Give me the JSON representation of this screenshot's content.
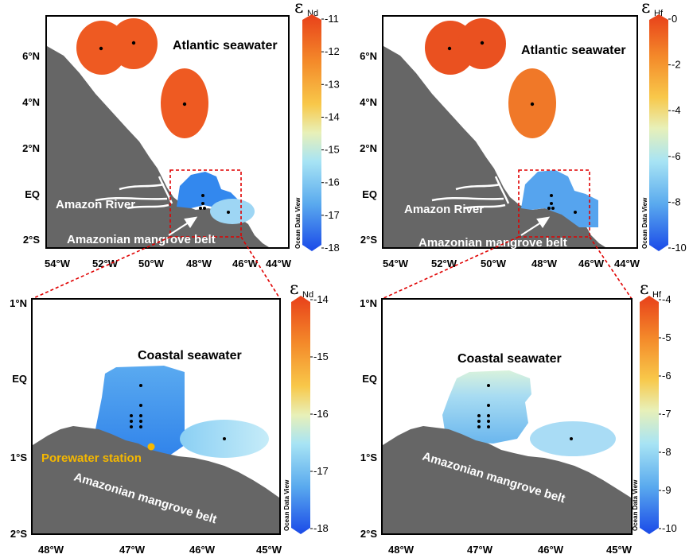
{
  "panels": [
    {
      "id": "nd_regional",
      "lon_ticks": [
        "54°W",
        "52°W",
        "50°W",
        "48°W",
        "46°W",
        "44°W"
      ],
      "lat_ticks": [
        "6°N",
        "4°N",
        "2°N",
        "EQ",
        "2°S"
      ],
      "labels": [
        "Atlantic seawater",
        "Amazon River",
        "Amazonian mangrove belt"
      ],
      "colorbar": {
        "symbol": "ε",
        "subscript": "Nd",
        "min": -18,
        "max": -11,
        "ticks": [
          "-11",
          "-12",
          "-13",
          "-14",
          "-15",
          "-16",
          "-17",
          "-18"
        ],
        "credit": "Ocean Data View"
      },
      "stations": [
        {
          "name": "station-1",
          "value": -11.5
        },
        {
          "name": "station-2",
          "value": -11.5
        },
        {
          "name": "station-3",
          "value": -11.6
        },
        {
          "name": "coastal-cluster",
          "value": -17.0
        },
        {
          "name": "offshore-east",
          "value": -16.2
        }
      ]
    },
    {
      "id": "hf_regional",
      "lon_ticks": [
        "54°W",
        "52°W",
        "50°W",
        "48°W",
        "46°W",
        "44°W"
      ],
      "lat_ticks": [
        "6°N",
        "4°N",
        "2°N",
        "EQ",
        "2°S"
      ],
      "labels": [
        "Atlantic seawater",
        "Amazon River",
        "Amazonian mangrove belt"
      ],
      "colorbar": {
        "symbol": "ε",
        "subscript": "Hf",
        "min": -10,
        "max": 0,
        "ticks": [
          "0",
          "-2",
          "-4",
          "-6",
          "-8",
          "-10"
        ],
        "credit": "Ocean Data View"
      },
      "stations": [
        {
          "name": "station-1",
          "value": -0.4
        },
        {
          "name": "station-2",
          "value": -0.6
        },
        {
          "name": "station-3",
          "value": -1.2
        },
        {
          "name": "coastal-cluster",
          "value": -8.0
        },
        {
          "name": "offshore-east",
          "value": -7.0
        }
      ]
    },
    {
      "id": "nd_zoom",
      "lon_ticks": [
        "48°W",
        "47°W",
        "46°W",
        "45°W"
      ],
      "lat_ticks": [
        "1°N",
        "EQ",
        "1°S",
        "2°S"
      ],
      "labels": [
        "Coastal seawater",
        "Porewater station",
        "Amazonian mangrove belt"
      ],
      "colorbar": {
        "symbol": "ε",
        "subscript": "Nd",
        "min": -18,
        "max": -14,
        "ticks": [
          "-14",
          "-15",
          "-16",
          "-17",
          "-18"
        ],
        "credit": "Ocean Data View"
      }
    },
    {
      "id": "hf_zoom",
      "lon_ticks": [
        "48°W",
        "47°W",
        "46°W",
        "45°W"
      ],
      "lat_ticks": [
        "1°N",
        "EQ",
        "1°S",
        "2°S"
      ],
      "labels": [
        "Coastal seawater",
        "Amazonian mangrove belt"
      ],
      "colorbar": {
        "symbol": "ε",
        "subscript": "Hf",
        "min": -10,
        "max": -4,
        "ticks": [
          "-4",
          "-5",
          "-6",
          "-7",
          "-8",
          "-9",
          "-10"
        ],
        "credit": "Ocean Data View"
      }
    }
  ],
  "colors": {
    "land": "#666666",
    "atlantic_patch": "#ee5a22",
    "coastal_deep": "#3388ee",
    "offshore_light": "#bfe8f6",
    "inset_box": "#e00000",
    "porewater_marker": "#f5b800",
    "river": "#ffffff"
  }
}
